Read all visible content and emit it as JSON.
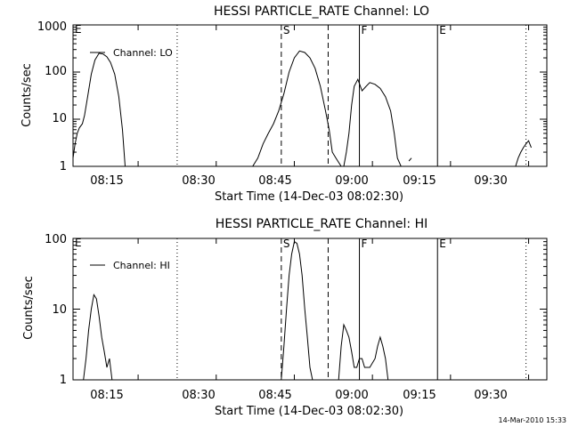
{
  "footer": {
    "timestamp": "14-Mar-2010 15:33"
  },
  "chart_data": [
    {
      "type": "line",
      "title": "HESSI PARTICLE_RATE Channel: LO",
      "xlabel": "Start Time (14-Dec-03 08:02:30)",
      "ylabel": "Counts/sec",
      "y_scale": "log",
      "ylim": [
        1,
        1000
      ],
      "y_ticks": [
        1,
        10,
        100,
        1000
      ],
      "y_tick_labels": [
        "1",
        "10",
        "100",
        "1000"
      ],
      "x_range_min": [
        2.5,
        77.5
      ],
      "x_ticks_min": [
        15,
        30,
        45,
        60,
        75
      ],
      "x_tick_labels": [
        "08:15",
        "08:30",
        "08:45",
        "09:00",
        "09:15",
        "09:30"
      ],
      "x_tick_label_min": [
        12.5,
        27.5,
        42.5,
        57.5,
        72.5,
        87.5
      ],
      "legend": "Channel: LO",
      "markers": [
        {
          "type": "dotted",
          "x": 20
        },
        {
          "type": "dashed",
          "x": 40,
          "label": "S"
        },
        {
          "type": "dashed",
          "x": 49
        },
        {
          "type": "solid",
          "x": 55,
          "label": "F"
        },
        {
          "type": "solid",
          "x": 70,
          "label": "E"
        },
        {
          "type": "dotted",
          "x": 87
        }
      ],
      "corner_label": "E",
      "series": [
        {
          "name": "Channel: LO",
          "segments": [
            [
              [
                0,
                1.5
              ],
              [
                0.4,
                3
              ],
              [
                0.8,
                5
              ],
              [
                1.2,
                6.5
              ],
              [
                1.8,
                8
              ],
              [
                2.2,
                12
              ],
              [
                2.8,
                30
              ],
              [
                3.5,
                90
              ],
              [
                4.2,
                180
              ],
              [
                5,
                250
              ],
              [
                5.8,
                240
              ],
              [
                6.5,
                210
              ],
              [
                7.2,
                160
              ],
              [
                8,
                90
              ],
              [
                8.8,
                30
              ],
              [
                9.5,
                6
              ],
              [
                10,
                1
              ]
            ],
            [
              [
                34.5,
                1
              ],
              [
                35.5,
                1.5
              ],
              [
                36.5,
                3
              ],
              [
                37.5,
                5
              ],
              [
                38.5,
                8
              ],
              [
                39.5,
                15
              ],
              [
                40.5,
                35
              ],
              [
                41.5,
                100
              ],
              [
                42.5,
                200
              ],
              [
                43.5,
                280
              ],
              [
                44.5,
                260
              ],
              [
                45.5,
                200
              ],
              [
                46.5,
                120
              ],
              [
                47.5,
                50
              ],
              [
                48.5,
                15
              ],
              [
                49.2,
                6
              ],
              [
                49.8,
                2
              ],
              [
                50.5,
                1.5
              ],
              [
                51.5,
                1
              ]
            ],
            [
              [
                52,
                1
              ],
              [
                52.5,
                2
              ],
              [
                53,
                5
              ],
              [
                53.5,
                20
              ],
              [
                54,
                50
              ],
              [
                54.7,
                70
              ],
              [
                55.5,
                40
              ],
              [
                56.3,
                50
              ],
              [
                57,
                60
              ],
              [
                58,
                55
              ],
              [
                59,
                45
              ],
              [
                60,
                30
              ],
              [
                61,
                15
              ],
              [
                61.7,
                5
              ],
              [
                62.3,
                1.5
              ],
              [
                63,
                1
              ]
            ],
            [
              [
                64.5,
                1.3
              ],
              [
                65,
                1.5
              ]
            ],
            [
              [
                85,
                1
              ],
              [
                85.5,
                1.5
              ],
              [
                86,
                2
              ],
              [
                86.5,
                2.5
              ],
              [
                87,
                3
              ],
              [
                87.5,
                3.5
              ],
              [
                88,
                2.5
              ]
            ]
          ]
        }
      ]
    },
    {
      "type": "line",
      "title": "HESSI PARTICLE_RATE Channel: HI",
      "xlabel": "Start Time (14-Dec-03 08:02:30)",
      "ylabel": "Counts/sec",
      "y_scale": "log",
      "ylim": [
        1,
        100
      ],
      "y_ticks": [
        1,
        10,
        100
      ],
      "y_tick_labels": [
        "1",
        "10",
        "100"
      ],
      "x_range_min": [
        2.5,
        77.5
      ],
      "x_ticks_min": [
        15,
        30,
        45,
        60,
        75
      ],
      "x_tick_labels": [
        "08:15",
        "08:30",
        "08:45",
        "09:00",
        "09:15",
        "09:30"
      ],
      "x_tick_label_min": [
        12.5,
        27.5,
        42.5,
        57.5,
        72.5,
        87.5
      ],
      "legend": "Channel: HI",
      "markers": [
        {
          "type": "dotted",
          "x": 20
        },
        {
          "type": "dashed",
          "x": 40,
          "label": "S"
        },
        {
          "type": "dashed",
          "x": 49
        },
        {
          "type": "solid",
          "x": 55,
          "label": "F"
        },
        {
          "type": "solid",
          "x": 70,
          "label": "E"
        },
        {
          "type": "dotted",
          "x": 87
        }
      ],
      "corner_label": "E",
      "series": [
        {
          "name": "Channel: HI",
          "segments": [
            [
              [
                2,
                1
              ],
              [
                2.5,
                2
              ],
              [
                3,
                5
              ],
              [
                3.5,
                10
              ],
              [
                4,
                16
              ],
              [
                4.5,
                14
              ],
              [
                5,
                8
              ],
              [
                5.5,
                4
              ],
              [
                6,
                2.5
              ],
              [
                6.5,
                1.5
              ],
              [
                7,
                2
              ],
              [
                7.5,
                1
              ]
            ],
            [
              [
                40,
                1
              ],
              [
                40.5,
                3
              ],
              [
                41,
                10
              ],
              [
                41.5,
                30
              ],
              [
                42,
                60
              ],
              [
                42.5,
                90
              ],
              [
                43,
                85
              ],
              [
                43.5,
                60
              ],
              [
                44,
                30
              ],
              [
                44.5,
                10
              ],
              [
                45,
                4
              ],
              [
                45.5,
                1.5
              ],
              [
                46,
                1
              ]
            ],
            [
              [
                51,
                1
              ],
              [
                51.5,
                3
              ],
              [
                52,
                6
              ],
              [
                52.5,
                5
              ],
              [
                53,
                4
              ],
              [
                53.5,
                2.5
              ],
              [
                54,
                1.5
              ],
              [
                54.5,
                1.5
              ],
              [
                55,
                2
              ],
              [
                55.5,
                2
              ],
              [
                56,
                1.5
              ],
              [
                57,
                1.5
              ],
              [
                58,
                2
              ],
              [
                58.5,
                3
              ],
              [
                59,
                4
              ],
              [
                59.5,
                3
              ],
              [
                60,
                2
              ],
              [
                60.5,
                1
              ]
            ]
          ]
        }
      ]
    }
  ]
}
